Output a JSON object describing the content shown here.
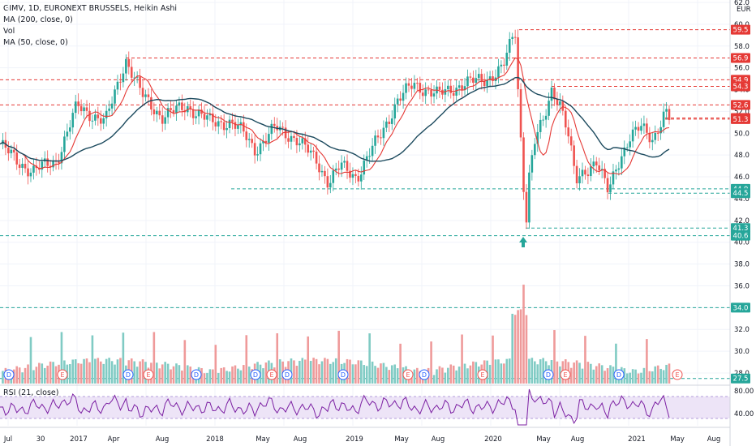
{
  "header": {
    "symbol_line": "GIMV, 1D, EURONEXT BRUSSELS, Heikin Ashi",
    "indicators": [
      "MA (200, close, 0)",
      "Vol",
      "MA (50, close, 0)"
    ]
  },
  "price_axis": {
    "currency": "EUR",
    "ticks": [
      "62.0",
      "60.0",
      "58.0",
      "56.0",
      "54.0",
      "52.0",
      "50.0",
      "48.0",
      "46.0",
      "44.0",
      "42.0",
      "40.0",
      "38.0",
      "36.0",
      "34.0",
      "32.0",
      "30.0",
      "28.0"
    ]
  },
  "level_labels": [
    {
      "text": "59.5",
      "value": 59.5,
      "color": "#e53935"
    },
    {
      "text": "56.9",
      "value": 56.9,
      "color": "#e53935"
    },
    {
      "text": "54.9",
      "value": 54.9,
      "color": "#e53935"
    },
    {
      "text": "54.3",
      "value": 54.3,
      "color": "#e53935"
    },
    {
      "text": "52.6",
      "value": 52.6,
      "color": "#e53935"
    },
    {
      "text": "51.4",
      "value": 51.4,
      "color": "#e53935"
    },
    {
      "text": "51.3",
      "value": 51.3,
      "color": "#e53935"
    },
    {
      "text": "44.9",
      "value": 44.9,
      "color": "#26a69a"
    },
    {
      "text": "44.5",
      "value": 44.5,
      "color": "#26a69a"
    },
    {
      "text": "41.3",
      "value": 41.3,
      "color": "#26a69a"
    },
    {
      "text": "40.6",
      "value": 40.6,
      "color": "#26a69a"
    },
    {
      "text": "34.0",
      "value": 34.0,
      "color": "#26a69a"
    },
    {
      "text": "27.5",
      "value": 27.5,
      "color": "#26a69a"
    }
  ],
  "rsi": {
    "label": "RSI (21, close)",
    "ticks": [
      "80.00",
      "40.00"
    ]
  },
  "time_axis": {
    "labels": [
      "Jul",
      "30",
      "2017",
      "Apr",
      "Aug",
      "2018",
      "May",
      "Aug",
      "2019",
      "May",
      "Aug",
      "2020",
      "May",
      "Aug",
      "2021",
      "May",
      "Aug"
    ]
  },
  "event_markers": [
    "D",
    "E",
    "D",
    "E",
    "D",
    "D",
    "E",
    "D",
    "D",
    "E",
    "D",
    "E",
    "D",
    "E",
    "D",
    "E",
    "D",
    "E",
    "D",
    "D",
    "E",
    "D",
    "E",
    "D"
  ],
  "colors": {
    "up": "#26a69a",
    "down": "#ef5350",
    "ma50": "#e53935",
    "ma200": "#1c4a5e",
    "rsi": "#7b1fa2"
  }
}
